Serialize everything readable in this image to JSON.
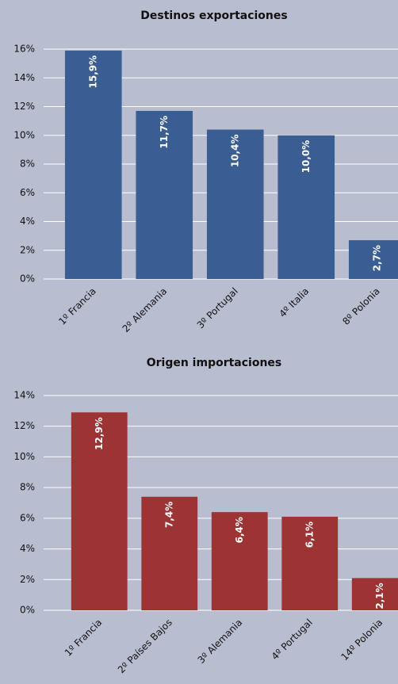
{
  "chart_data": [
    {
      "type": "bar",
      "title": "Destinos exportaciones",
      "categories": [
        "1º Francia",
        "2º Alemania",
        "3º Portugal",
        "4º Italia",
        "8º Polonia"
      ],
      "values": [
        15.9,
        11.7,
        10.4,
        10.0,
        2.7
      ],
      "value_labels": [
        "15,9%",
        "11,7%",
        "10,4%",
        "10,0%",
        "2,7%"
      ],
      "color": "#3a5e92",
      "ylim": [
        0,
        16
      ],
      "yticks": [
        {
          "value": 0,
          "label": "0%"
        },
        {
          "value": 2,
          "label": "2%"
        },
        {
          "value": 4,
          "label": "4%"
        },
        {
          "value": 6,
          "label": "6%"
        },
        {
          "value": 8,
          "label": "8%"
        },
        {
          "value": 10,
          "label": "10%"
        },
        {
          "value": 12,
          "label": "12%"
        },
        {
          "value": 14,
          "label": "14%"
        },
        {
          "value": 16,
          "label": "16%"
        }
      ],
      "grid": true
    },
    {
      "type": "bar",
      "title": "Origen importaciones",
      "categories": [
        "1º Francia",
        "2º Países Bajos",
        "3º Alemania",
        "4º Portugal",
        "14º Polonia"
      ],
      "values": [
        12.9,
        7.4,
        6.4,
        6.1,
        2.1
      ],
      "value_labels": [
        "12,9%",
        "7,4%",
        "6,4%",
        "6,1%",
        "2,1%"
      ],
      "color": "#9c3434",
      "ylim": [
        0,
        14
      ],
      "yticks": [
        {
          "value": 0,
          "label": "0%"
        },
        {
          "value": 2,
          "label": "2%"
        },
        {
          "value": 4,
          "label": "4%"
        },
        {
          "value": 6,
          "label": "6%"
        },
        {
          "value": 8,
          "label": "8%"
        },
        {
          "value": 10,
          "label": "10%"
        },
        {
          "value": 12,
          "label": "12%"
        },
        {
          "value": 14,
          "label": "14%"
        }
      ],
      "grid": true
    }
  ]
}
